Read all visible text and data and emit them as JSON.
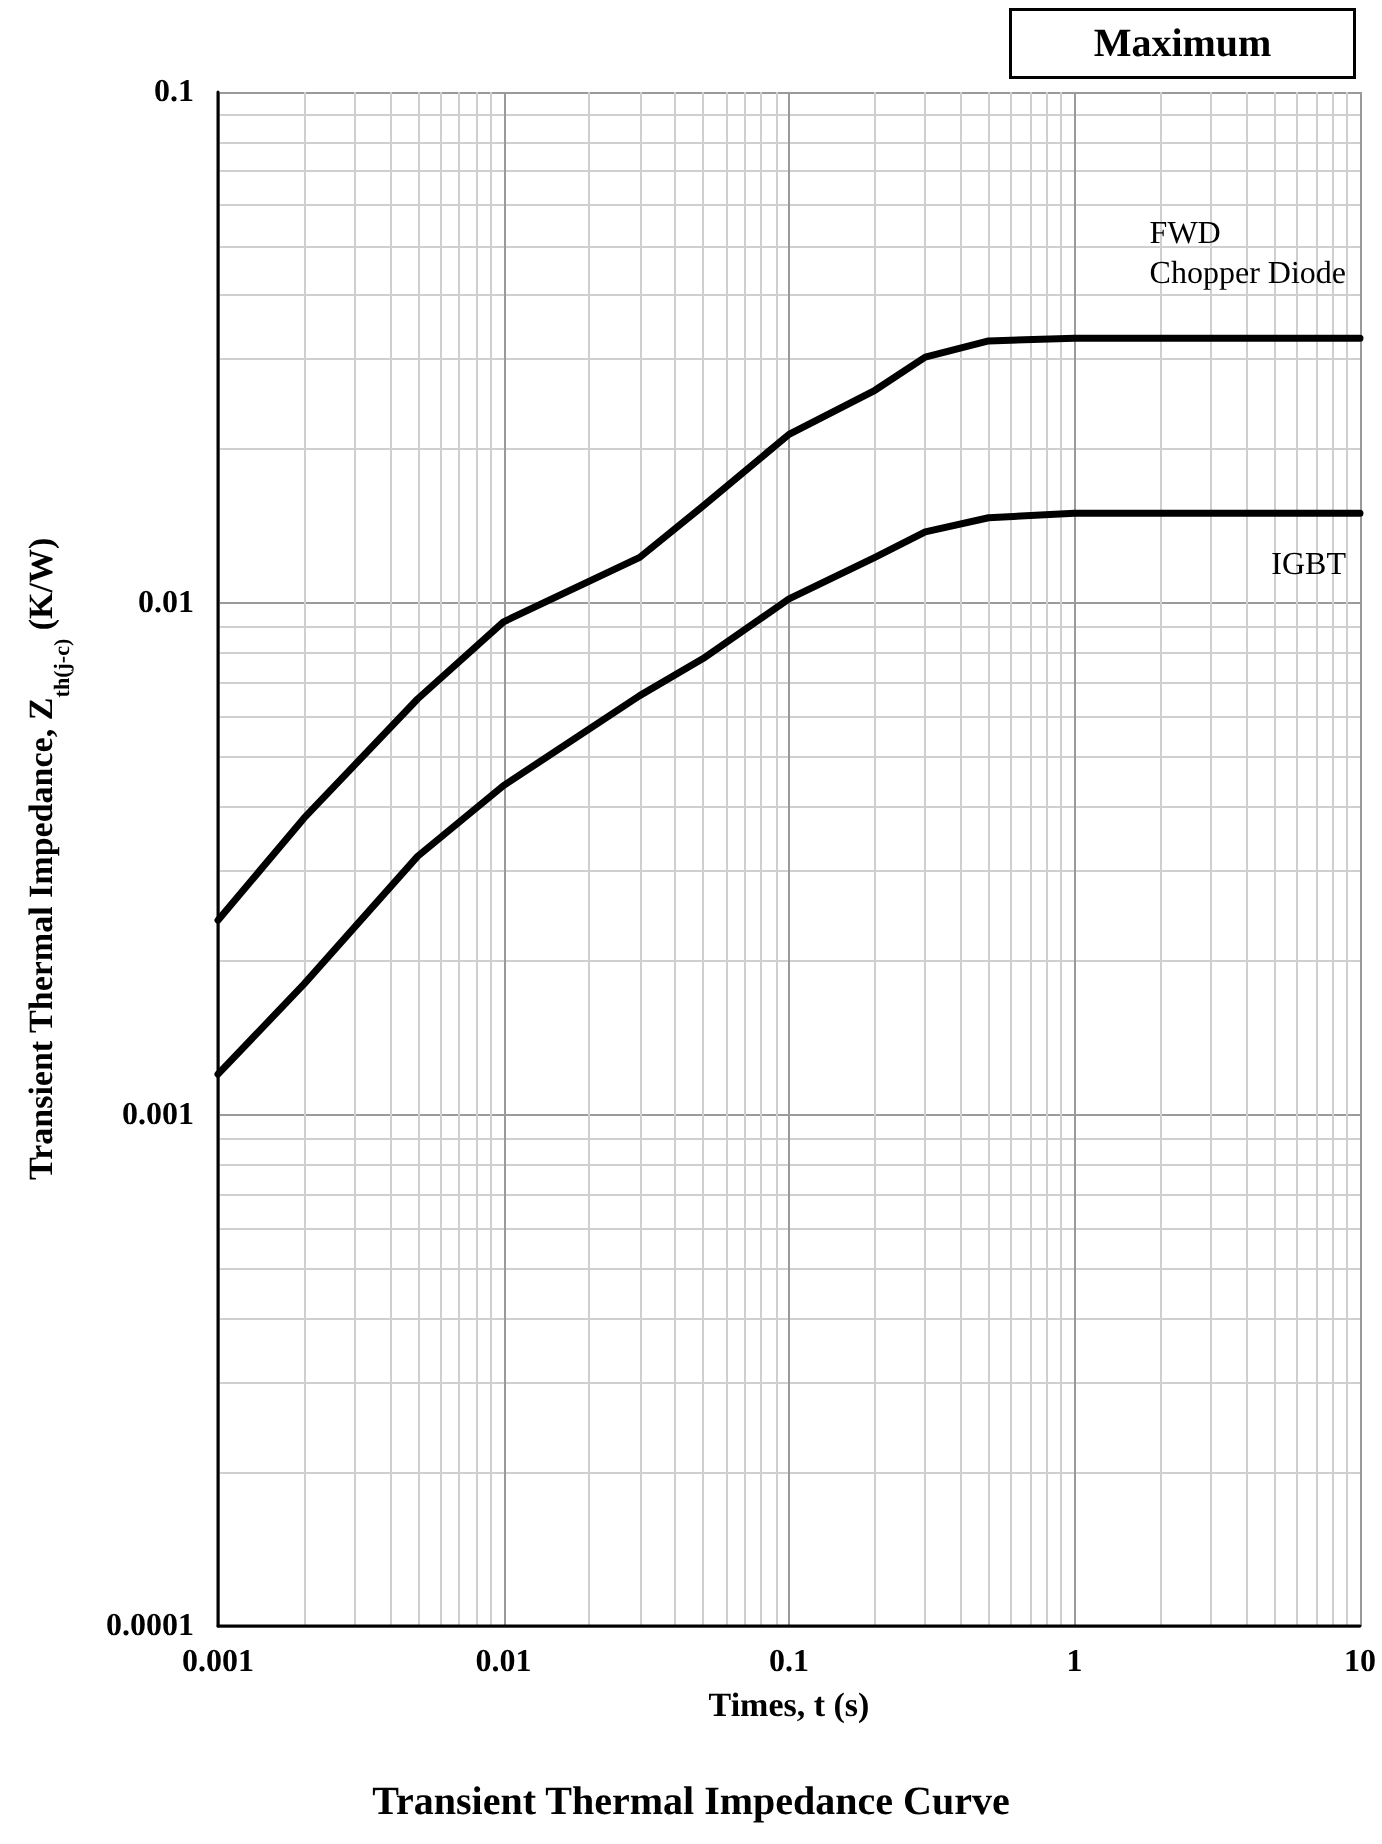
{
  "chart_data": {
    "type": "line",
    "title": "Transient Thermal Impedance Curve",
    "xlabel": "Times, t (s)",
    "ylabel": "Transient Thermal Impedance, Z$_{th(j-c)}$ (K/W)",
    "annotations": [
      "Maximum"
    ],
    "log": "xy",
    "grid": true,
    "legend": false,
    "marker": "none",
    "line_style": "solid",
    "xlim": [
      0.001,
      10
    ],
    "xticks": [
      0.001,
      0.01,
      0.1,
      1,
      10
    ],
    "ylim": [
      0.0001,
      0.1
    ],
    "yticks": [
      0.0001,
      0.001,
      0.01,
      0.1
    ],
    "series": [
      {
        "name": "FWD Chopper Diode",
        "color": "#000000",
        "x": [
          0.001,
          0.002,
          0.005,
          0.01,
          0.03,
          0.05,
          0.1,
          0.2,
          0.3,
          0.5,
          1,
          10
        ],
        "values": [
          0.0024,
          0.0038,
          0.0065,
          0.0092,
          0.0123,
          0.0155,
          0.0214,
          0.0261,
          0.0303,
          0.0326,
          0.033,
          0.033
        ]
      },
      {
        "name": "IGBT",
        "color": "#000000",
        "x": [
          0.001,
          0.002,
          0.005,
          0.01,
          0.03,
          0.05,
          0.1,
          0.2,
          0.3,
          0.5,
          1,
          10
        ],
        "values": [
          0.0012,
          0.0018,
          0.0032,
          0.0044,
          0.0066,
          0.0078,
          0.0102,
          0.0123,
          0.0138,
          0.0147,
          0.015,
          0.015
        ]
      }
    ]
  }
}
